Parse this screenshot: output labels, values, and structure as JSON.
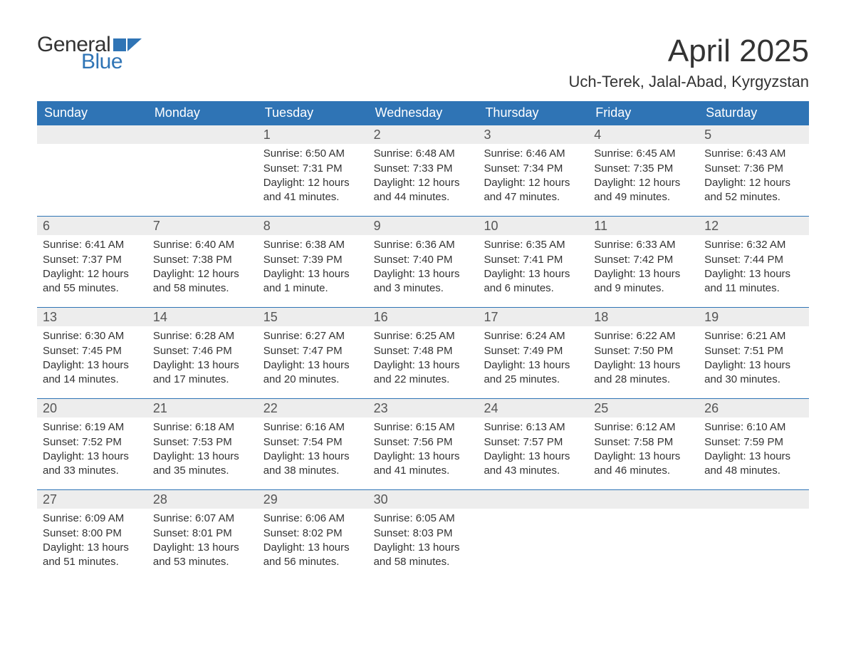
{
  "logo": {
    "word1": "General",
    "word2": "Blue",
    "word1_color": "#333333",
    "word2_color": "#2f74b5",
    "flag_color": "#2f74b5"
  },
  "title": "April 2025",
  "location": "Uch-Terek, Jalal-Abad, Kyrgyzstan",
  "colors": {
    "header_bg": "#2f74b5",
    "header_text": "#ffffff",
    "daynum_bg": "#ededed",
    "daynum_text": "#555555",
    "body_text": "#333333",
    "week_divider": "#2f74b5",
    "page_bg": "#ffffff"
  },
  "typography": {
    "title_fontsize": 44,
    "location_fontsize": 22,
    "dayheader_fontsize": 18,
    "daynum_fontsize": 18,
    "body_fontsize": 15,
    "logo_fontsize": 30,
    "font_family": "Arial"
  },
  "day_names": [
    "Sunday",
    "Monday",
    "Tuesday",
    "Wednesday",
    "Thursday",
    "Friday",
    "Saturday"
  ],
  "weeks": [
    [
      {
        "num": "",
        "sunrise": "",
        "sunset": "",
        "daylight": ""
      },
      {
        "num": "",
        "sunrise": "",
        "sunset": "",
        "daylight": ""
      },
      {
        "num": "1",
        "sunrise": "Sunrise: 6:50 AM",
        "sunset": "Sunset: 7:31 PM",
        "daylight": "Daylight: 12 hours and 41 minutes."
      },
      {
        "num": "2",
        "sunrise": "Sunrise: 6:48 AM",
        "sunset": "Sunset: 7:33 PM",
        "daylight": "Daylight: 12 hours and 44 minutes."
      },
      {
        "num": "3",
        "sunrise": "Sunrise: 6:46 AM",
        "sunset": "Sunset: 7:34 PM",
        "daylight": "Daylight: 12 hours and 47 minutes."
      },
      {
        "num": "4",
        "sunrise": "Sunrise: 6:45 AM",
        "sunset": "Sunset: 7:35 PM",
        "daylight": "Daylight: 12 hours and 49 minutes."
      },
      {
        "num": "5",
        "sunrise": "Sunrise: 6:43 AM",
        "sunset": "Sunset: 7:36 PM",
        "daylight": "Daylight: 12 hours and 52 minutes."
      }
    ],
    [
      {
        "num": "6",
        "sunrise": "Sunrise: 6:41 AM",
        "sunset": "Sunset: 7:37 PM",
        "daylight": "Daylight: 12 hours and 55 minutes."
      },
      {
        "num": "7",
        "sunrise": "Sunrise: 6:40 AM",
        "sunset": "Sunset: 7:38 PM",
        "daylight": "Daylight: 12 hours and 58 minutes."
      },
      {
        "num": "8",
        "sunrise": "Sunrise: 6:38 AM",
        "sunset": "Sunset: 7:39 PM",
        "daylight": "Daylight: 13 hours and 1 minute."
      },
      {
        "num": "9",
        "sunrise": "Sunrise: 6:36 AM",
        "sunset": "Sunset: 7:40 PM",
        "daylight": "Daylight: 13 hours and 3 minutes."
      },
      {
        "num": "10",
        "sunrise": "Sunrise: 6:35 AM",
        "sunset": "Sunset: 7:41 PM",
        "daylight": "Daylight: 13 hours and 6 minutes."
      },
      {
        "num": "11",
        "sunrise": "Sunrise: 6:33 AM",
        "sunset": "Sunset: 7:42 PM",
        "daylight": "Daylight: 13 hours and 9 minutes."
      },
      {
        "num": "12",
        "sunrise": "Sunrise: 6:32 AM",
        "sunset": "Sunset: 7:44 PM",
        "daylight": "Daylight: 13 hours and 11 minutes."
      }
    ],
    [
      {
        "num": "13",
        "sunrise": "Sunrise: 6:30 AM",
        "sunset": "Sunset: 7:45 PM",
        "daylight": "Daylight: 13 hours and 14 minutes."
      },
      {
        "num": "14",
        "sunrise": "Sunrise: 6:28 AM",
        "sunset": "Sunset: 7:46 PM",
        "daylight": "Daylight: 13 hours and 17 minutes."
      },
      {
        "num": "15",
        "sunrise": "Sunrise: 6:27 AM",
        "sunset": "Sunset: 7:47 PM",
        "daylight": "Daylight: 13 hours and 20 minutes."
      },
      {
        "num": "16",
        "sunrise": "Sunrise: 6:25 AM",
        "sunset": "Sunset: 7:48 PM",
        "daylight": "Daylight: 13 hours and 22 minutes."
      },
      {
        "num": "17",
        "sunrise": "Sunrise: 6:24 AM",
        "sunset": "Sunset: 7:49 PM",
        "daylight": "Daylight: 13 hours and 25 minutes."
      },
      {
        "num": "18",
        "sunrise": "Sunrise: 6:22 AM",
        "sunset": "Sunset: 7:50 PM",
        "daylight": "Daylight: 13 hours and 28 minutes."
      },
      {
        "num": "19",
        "sunrise": "Sunrise: 6:21 AM",
        "sunset": "Sunset: 7:51 PM",
        "daylight": "Daylight: 13 hours and 30 minutes."
      }
    ],
    [
      {
        "num": "20",
        "sunrise": "Sunrise: 6:19 AM",
        "sunset": "Sunset: 7:52 PM",
        "daylight": "Daylight: 13 hours and 33 minutes."
      },
      {
        "num": "21",
        "sunrise": "Sunrise: 6:18 AM",
        "sunset": "Sunset: 7:53 PM",
        "daylight": "Daylight: 13 hours and 35 minutes."
      },
      {
        "num": "22",
        "sunrise": "Sunrise: 6:16 AM",
        "sunset": "Sunset: 7:54 PM",
        "daylight": "Daylight: 13 hours and 38 minutes."
      },
      {
        "num": "23",
        "sunrise": "Sunrise: 6:15 AM",
        "sunset": "Sunset: 7:56 PM",
        "daylight": "Daylight: 13 hours and 41 minutes."
      },
      {
        "num": "24",
        "sunrise": "Sunrise: 6:13 AM",
        "sunset": "Sunset: 7:57 PM",
        "daylight": "Daylight: 13 hours and 43 minutes."
      },
      {
        "num": "25",
        "sunrise": "Sunrise: 6:12 AM",
        "sunset": "Sunset: 7:58 PM",
        "daylight": "Daylight: 13 hours and 46 minutes."
      },
      {
        "num": "26",
        "sunrise": "Sunrise: 6:10 AM",
        "sunset": "Sunset: 7:59 PM",
        "daylight": "Daylight: 13 hours and 48 minutes."
      }
    ],
    [
      {
        "num": "27",
        "sunrise": "Sunrise: 6:09 AM",
        "sunset": "Sunset: 8:00 PM",
        "daylight": "Daylight: 13 hours and 51 minutes."
      },
      {
        "num": "28",
        "sunrise": "Sunrise: 6:07 AM",
        "sunset": "Sunset: 8:01 PM",
        "daylight": "Daylight: 13 hours and 53 minutes."
      },
      {
        "num": "29",
        "sunrise": "Sunrise: 6:06 AM",
        "sunset": "Sunset: 8:02 PM",
        "daylight": "Daylight: 13 hours and 56 minutes."
      },
      {
        "num": "30",
        "sunrise": "Sunrise: 6:05 AM",
        "sunset": "Sunset: 8:03 PM",
        "daylight": "Daylight: 13 hours and 58 minutes."
      },
      {
        "num": "",
        "sunrise": "",
        "sunset": "",
        "daylight": ""
      },
      {
        "num": "",
        "sunrise": "",
        "sunset": "",
        "daylight": ""
      },
      {
        "num": "",
        "sunrise": "",
        "sunset": "",
        "daylight": ""
      }
    ]
  ]
}
